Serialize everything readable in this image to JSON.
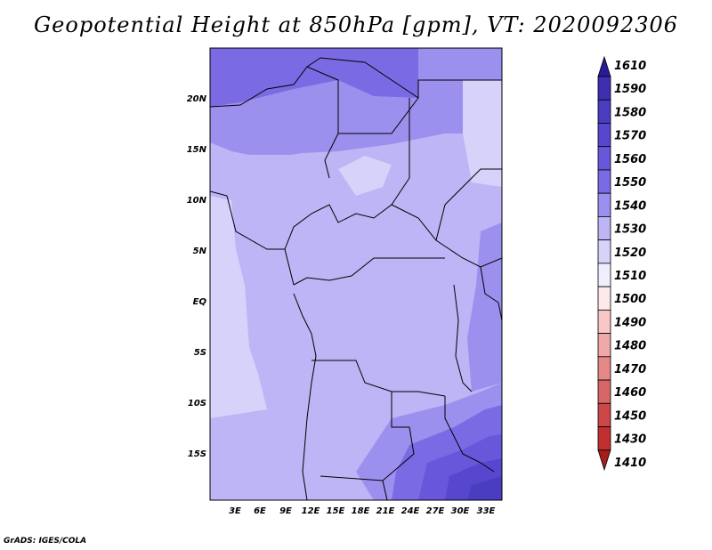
{
  "title": "Geopotential Height at 850hPa [gpm], VT: 2020092306",
  "credit": "GrADS: IGES/COLA",
  "map": {
    "lat_labels": [
      "20N",
      "15N",
      "10N",
      "5N",
      "EQ",
      "5S",
      "10S",
      "15S"
    ],
    "lon_labels": [
      "3E",
      "6E",
      "9E",
      "12E",
      "15E",
      "18E",
      "21E",
      "24E",
      "27E",
      "30E",
      "33E"
    ]
  },
  "colorbar": {
    "levels": [
      "1610",
      "1590",
      "1580",
      "1570",
      "1560",
      "1550",
      "1540",
      "1530",
      "1520",
      "1510",
      "1500",
      "1490",
      "1480",
      "1470",
      "1460",
      "1450",
      "1430",
      "1410"
    ],
    "colors": [
      "#2a1a99",
      "#3d2fb0",
      "#4a3dc0",
      "#5747cf",
      "#6857da",
      "#7a6be4",
      "#9c90ee",
      "#bdb5f5",
      "#d6d2fa",
      "#eeeeff",
      "#fde9e9",
      "#f8c8c8",
      "#f0a8a8",
      "#e48888",
      "#d86666",
      "#cc4848",
      "#c03030",
      "#a81c1c"
    ]
  }
}
